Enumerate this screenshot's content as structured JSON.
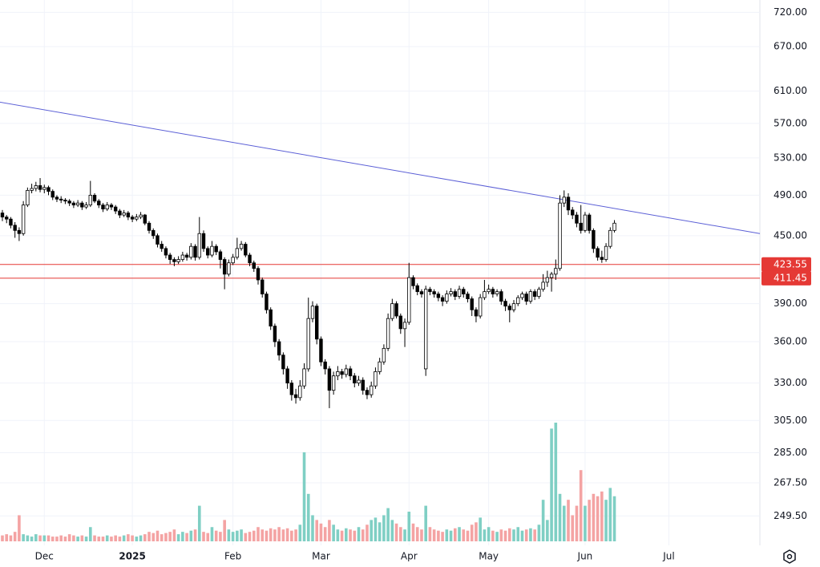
{
  "chart_data": {
    "type": "candlestick",
    "log_scale": true,
    "grid": true,
    "ylim": [
      234.5,
      739
    ],
    "yticks": [
      {
        "value": 720,
        "label": "720.00"
      },
      {
        "value": 670,
        "label": "670.00"
      },
      {
        "value": 610,
        "label": "610.00"
      },
      {
        "value": 570,
        "label": "570.00"
      },
      {
        "value": 530,
        "label": "530.00"
      },
      {
        "value": 490,
        "label": "490.00"
      },
      {
        "value": 450,
        "label": "450.00"
      },
      {
        "value": 390,
        "label": "390.00"
      },
      {
        "value": 360,
        "label": "360.00"
      },
      {
        "value": 330,
        "label": "330.00"
      },
      {
        "value": 305,
        "label": "305.00"
      },
      {
        "value": 285,
        "label": "285.00"
      },
      {
        "value": 267.5,
        "label": "267.50"
      },
      {
        "value": 249.5,
        "label": "249.50"
      }
    ],
    "xlim": [
      -0.57,
      180.7
    ],
    "xticks": [
      {
        "value": 10,
        "label": "Dec"
      },
      {
        "value": 31,
        "label": "2025"
      },
      {
        "value": 55,
        "label": "Feb"
      },
      {
        "value": 76,
        "label": "Mar"
      },
      {
        "value": 97,
        "label": "Apr"
      },
      {
        "value": 116,
        "label": "May"
      },
      {
        "value": 139,
        "label": "Jun"
      },
      {
        "value": 159,
        "label": "Jul"
      }
    ],
    "up_color": "#ffffff",
    "down_color": "#000000",
    "volume_up_color": "#7fcfc4",
    "volume_down_color": "#f4a3a3",
    "hlines": [
      423.55,
      411.45
    ],
    "hline_color": "#e53935",
    "trendline": {
      "x": [
        -0.57,
        180.7
      ],
      "y": [
        596,
        452
      ],
      "color": "#5b5fd6"
    },
    "volume_lim": [
      0,
      100
    ],
    "ohlc": [
      [
        472,
        475,
        464,
        468
      ],
      [
        468,
        470,
        462,
        466
      ],
      [
        466,
        468,
        457,
        460
      ],
      [
        460,
        463,
        448,
        455
      ],
      [
        455,
        458,
        445,
        452
      ],
      [
        452,
        484,
        450,
        480
      ],
      [
        480,
        498,
        478,
        495
      ],
      [
        495,
        502,
        492,
        497
      ],
      [
        497,
        504,
        494,
        500
      ],
      [
        500,
        508,
        493,
        496
      ],
      [
        496,
        501,
        492,
        498
      ],
      [
        498,
        500,
        490,
        494
      ],
      [
        494,
        496,
        485,
        488
      ],
      [
        488,
        490,
        483,
        486
      ],
      [
        486,
        489,
        482,
        485
      ],
      [
        485,
        487,
        481,
        484
      ],
      [
        484,
        486,
        479,
        482
      ],
      [
        482,
        484,
        477,
        480
      ],
      [
        480,
        485,
        478,
        482
      ],
      [
        482,
        484,
        475,
        478
      ],
      [
        478,
        483,
        476,
        480
      ],
      [
        480,
        505,
        478,
        490
      ],
      [
        490,
        492,
        482,
        484
      ],
      [
        484,
        486,
        477,
        480
      ],
      [
        480,
        482,
        473,
        476
      ],
      [
        476,
        483,
        474,
        480
      ],
      [
        480,
        482,
        475,
        478
      ],
      [
        478,
        480,
        471,
        474
      ],
      [
        474,
        476,
        467,
        470
      ],
      [
        470,
        475,
        468,
        472
      ],
      [
        472,
        474,
        465,
        468
      ],
      [
        468,
        470,
        463,
        466
      ],
      [
        466,
        471,
        464,
        468
      ],
      [
        468,
        473,
        466,
        470
      ],
      [
        470,
        471,
        460,
        462
      ],
      [
        462,
        464,
        452,
        455
      ],
      [
        455,
        457,
        447,
        450
      ],
      [
        450,
        452,
        439,
        442
      ],
      [
        442,
        445,
        435,
        438
      ],
      [
        438,
        440,
        429,
        432
      ],
      [
        432,
        434,
        424,
        428
      ],
      [
        428,
        430,
        422,
        426
      ],
      [
        426,
        431,
        424,
        428
      ],
      [
        428,
        435,
        426,
        432
      ],
      [
        432,
        434,
        427,
        430
      ],
      [
        430,
        443,
        428,
        440
      ],
      [
        440,
        442,
        427,
        430
      ],
      [
        430,
        468,
        428,
        452
      ],
      [
        452,
        455,
        435,
        438
      ],
      [
        438,
        440,
        429,
        432
      ],
      [
        432,
        445,
        430,
        440
      ],
      [
        440,
        442,
        432,
        435
      ],
      [
        435,
        437,
        420,
        428
      ],
      [
        428,
        430,
        402,
        415
      ],
      [
        415,
        428,
        413,
        425
      ],
      [
        425,
        433,
        423,
        430
      ],
      [
        430,
        448,
        428,
        438
      ],
      [
        438,
        445,
        436,
        442
      ],
      [
        442,
        444,
        430,
        432
      ],
      [
        432,
        434,
        422,
        425
      ],
      [
        425,
        427,
        417,
        420
      ],
      [
        420,
        422,
        406,
        410
      ],
      [
        410,
        412,
        395,
        398
      ],
      [
        398,
        400,
        382,
        385
      ],
      [
        385,
        387,
        369,
        372
      ],
      [
        372,
        374,
        356,
        360
      ],
      [
        360,
        362,
        346,
        350
      ],
      [
        350,
        352,
        336,
        340
      ],
      [
        340,
        342,
        326,
        330
      ],
      [
        330,
        332,
        318,
        322
      ],
      [
        322,
        326,
        316,
        320
      ],
      [
        320,
        332,
        318,
        328
      ],
      [
        328,
        344,
        326,
        340
      ],
      [
        340,
        395,
        338,
        378
      ],
      [
        378,
        392,
        375,
        388
      ],
      [
        388,
        390,
        358,
        362
      ],
      [
        362,
        364,
        342,
        345
      ],
      [
        345,
        347,
        336,
        340
      ],
      [
        340,
        342,
        313,
        325
      ],
      [
        325,
        338,
        322,
        335
      ],
      [
        335,
        342,
        332,
        338
      ],
      [
        338,
        340,
        333,
        336
      ],
      [
        336,
        343,
        334,
        340
      ],
      [
        340,
        342,
        332,
        335
      ],
      [
        335,
        337,
        327,
        330
      ],
      [
        330,
        335,
        328,
        332
      ],
      [
        332,
        334,
        322,
        325
      ],
      [
        325,
        327,
        319,
        322
      ],
      [
        322,
        331,
        320,
        328
      ],
      [
        328,
        341,
        326,
        338
      ],
      [
        338,
        348,
        336,
        345
      ],
      [
        345,
        358,
        343,
        355
      ],
      [
        355,
        382,
        353,
        378
      ],
      [
        378,
        394,
        376,
        390
      ],
      [
        390,
        392,
        378,
        380
      ],
      [
        380,
        382,
        366,
        370
      ],
      [
        370,
        378,
        356,
        375
      ],
      [
        375,
        425,
        373,
        412
      ],
      [
        412,
        414,
        402,
        405
      ],
      [
        405,
        407,
        397,
        400
      ],
      [
        400,
        402,
        395,
        398
      ],
      [
        340,
        405,
        335,
        402
      ],
      [
        402,
        404,
        397,
        400
      ],
      [
        400,
        402,
        395,
        398
      ],
      [
        398,
        400,
        392,
        395
      ],
      [
        395,
        397,
        388,
        392
      ],
      [
        392,
        401,
        390,
        398
      ],
      [
        398,
        403,
        396,
        400
      ],
      [
        400,
        402,
        393,
        396
      ],
      [
        396,
        405,
        394,
        402
      ],
      [
        402,
        404,
        395,
        398
      ],
      [
        398,
        400,
        391,
        394
      ],
      [
        394,
        396,
        380,
        385
      ],
      [
        385,
        387,
        375,
        380
      ],
      [
        380,
        398,
        378,
        395
      ],
      [
        395,
        410,
        393,
        400
      ],
      [
        400,
        406,
        398,
        402
      ],
      [
        402,
        404,
        395,
        398
      ],
      [
        398,
        402,
        396,
        400
      ],
      [
        400,
        402,
        389,
        392
      ],
      [
        392,
        394,
        384,
        388
      ],
      [
        388,
        390,
        375,
        385
      ],
      [
        385,
        393,
        383,
        390
      ],
      [
        390,
        397,
        388,
        395
      ],
      [
        395,
        400,
        393,
        398
      ],
      [
        398,
        400,
        389,
        392
      ],
      [
        392,
        402,
        390,
        400
      ],
      [
        400,
        402,
        393,
        396
      ],
      [
        396,
        404,
        394,
        402
      ],
      [
        402,
        415,
        400,
        408
      ],
      [
        408,
        418,
        404,
        412
      ],
      [
        412,
        417,
        400,
        415
      ],
      [
        415,
        428,
        410,
        420
      ],
      [
        420,
        490,
        418,
        482
      ],
      [
        482,
        495,
        478,
        488
      ],
      [
        488,
        492,
        470,
        475
      ],
      [
        475,
        478,
        466,
        470
      ],
      [
        470,
        473,
        458,
        462
      ],
      [
        462,
        480,
        452,
        455
      ],
      [
        455,
        473,
        453,
        470
      ],
      [
        470,
        472,
        452,
        455
      ],
      [
        455,
        457,
        434,
        438
      ],
      [
        438,
        440,
        427,
        430
      ],
      [
        430,
        436,
        425,
        428
      ],
      [
        428,
        443,
        426,
        440
      ],
      [
        440,
        458,
        438,
        455
      ],
      [
        455,
        465,
        453,
        462
      ]
    ],
    "volume": [
      5,
      6,
      5,
      8,
      22,
      6,
      5,
      4,
      6,
      5,
      5,
      5,
      4,
      4,
      5,
      4,
      6,
      5,
      4,
      5,
      4,
      12,
      5,
      4,
      4,
      5,
      4,
      5,
      4,
      5,
      6,
      5,
      4,
      5,
      6,
      8,
      7,
      9,
      6,
      7,
      8,
      10,
      6,
      8,
      7,
      9,
      10,
      30,
      8,
      7,
      12,
      9,
      8,
      18,
      10,
      8,
      9,
      10,
      7,
      8,
      9,
      12,
      10,
      9,
      11,
      10,
      12,
      10,
      11,
      9,
      10,
      14,
      75,
      40,
      22,
      18,
      15,
      12,
      18,
      14,
      10,
      9,
      11,
      10,
      9,
      12,
      10,
      14,
      18,
      20,
      16,
      22,
      28,
      18,
      15,
      12,
      10,
      25,
      15,
      12,
      10,
      30,
      12,
      10,
      9,
      8,
      10,
      9,
      11,
      12,
      10,
      9,
      14,
      16,
      20,
      10,
      12,
      9,
      8,
      10,
      9,
      11,
      10,
      12,
      9,
      10,
      11,
      10,
      14,
      35,
      18,
      95,
      100,
      40,
      30,
      35,
      22,
      30,
      60,
      30,
      35,
      40,
      38,
      42,
      35,
      45,
      38
    ]
  }
}
